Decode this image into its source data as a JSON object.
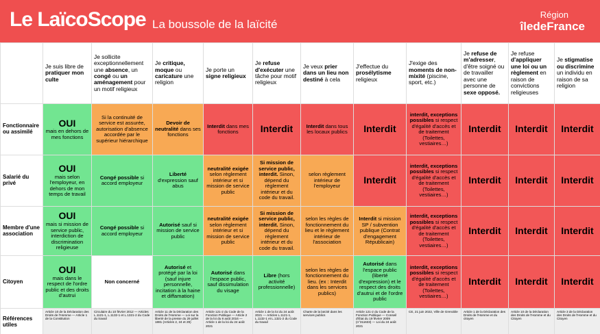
{
  "header": {
    "title": "Le LaïcoScope",
    "subtitle": "La boussole de la laïcité",
    "brand_top": "Région",
    "brand": "îledeFrance"
  },
  "table": {
    "columns": [
      [
        {
          "t": "Je suis libre de "
        },
        {
          "strong": "pratiquer mon culte"
        }
      ],
      [
        {
          "t": "Je sollicite exceptionnellement une "
        },
        {
          "strong": "absence"
        },
        {
          "t": ", un "
        },
        {
          "strong": "congé"
        },
        {
          "t": " ou "
        },
        {
          "strong": "un aménagement"
        },
        {
          "t": " pour un motif religieux"
        }
      ],
      [
        {
          "t": "Je "
        },
        {
          "strong": "critique, moque"
        },
        {
          "t": " ou "
        },
        {
          "strong": "caricature"
        },
        {
          "t": " une religion"
        }
      ],
      [
        {
          "t": "Je porte un "
        },
        {
          "strong": "signe religieux"
        }
      ],
      [
        {
          "t": "Je "
        },
        {
          "strong": "refuse d'exécuter"
        },
        {
          "t": " une tâche pour motif religieux"
        }
      ],
      [
        {
          "t": "Je veux "
        },
        {
          "strong": "prier dans un lieu non destiné"
        },
        {
          "t": " à cela"
        }
      ],
      [
        {
          "t": "J'effectue du "
        },
        {
          "strong": "prosélytisme"
        },
        {
          "t": " religieux"
        }
      ],
      [
        {
          "t": "J'exige des "
        },
        {
          "strong": "moments de non-mixité"
        },
        {
          "t": " (piscine, sport, etc.)"
        }
      ],
      [
        {
          "t": "Je "
        },
        {
          "strong": "refuse de m'adresser"
        },
        {
          "t": ", d'être soigné ou de travailler avec une personne de "
        },
        {
          "strong": "sexe opposé."
        }
      ],
      [
        {
          "t": "Je refuse "
        },
        {
          "strong": "d'appliquer une loi ou un règlement"
        },
        {
          "t": " en raison de convictions religieuses"
        }
      ],
      [
        {
          "t": "Je "
        },
        {
          "strong": "stigmatise ou discrimine"
        },
        {
          "t": " un individu en raison de sa religion"
        }
      ]
    ],
    "rows": [
      {
        "label": "Fonctionnaire ou assimilé",
        "cells": [
          {
            "color": "#72e591",
            "text": [
              {
                "big": "OUI"
              },
              {
                "t": "mais en dehors de mes fonctions"
              }
            ]
          },
          {
            "color": "#f8a954",
            "text": [
              {
                "t": "Si la continuité de service est assurée, autorisation d'absence accordée par le supérieur hiérarchique"
              }
            ]
          },
          {
            "color": "#f8a954",
            "text": [
              {
                "strong": "Devoir de neutralité"
              },
              {
                "t": " dans ses fonctions"
              }
            ]
          },
          {
            "color": "#f25757",
            "text": [
              {
                "strong": "Interdit"
              },
              {
                "t": " dans mes fonctions"
              }
            ]
          },
          {
            "color": "#f25757",
            "text": [
              {
                "big": "Interdit"
              }
            ]
          },
          {
            "color": "#f25757",
            "text": [
              {
                "strong": "Interdit"
              },
              {
                "t": " dans tous les locaux publics"
              }
            ]
          },
          {
            "color": "#f25757",
            "text": [
              {
                "big": "Interdit"
              }
            ]
          },
          {
            "color": "#f25757",
            "text": [
              {
                "strong": "interdit, exceptions possibles"
              },
              {
                "t": " si respect d'égalité d'accès et de traitement (Toilettes, vestiaires…)"
              }
            ]
          },
          {
            "color": "#f25757",
            "text": [
              {
                "big": "Interdit"
              }
            ]
          },
          {
            "color": "#f25757",
            "text": [
              {
                "big": "Interdit"
              }
            ]
          },
          {
            "color": "#f25757",
            "text": [
              {
                "big": "Interdit"
              }
            ]
          }
        ]
      },
      {
        "label": "Salarié du privé",
        "cells": [
          {
            "color": "#72e591",
            "text": [
              {
                "big": "OUI"
              },
              {
                "t": "mais selon l'employeur, en dehors de mon temps de travail"
              }
            ]
          },
          {
            "color": "#72e591",
            "text": [
              {
                "strong": "Congé possible"
              },
              {
                "t": " si accord employeur"
              }
            ]
          },
          {
            "color": "#72e591",
            "text": [
              {
                "strong": "Liberté"
              },
              {
                "t": " d'expression sauf abus"
              }
            ]
          },
          {
            "color": "#f8a954",
            "text": [
              {
                "strong": "neutralité exigée"
              },
              {
                "t": " selon règlement intérieur et si mission de service public"
              }
            ]
          },
          {
            "color": "#f8a954",
            "text": [
              {
                "strong": "Si mission de service public, interdit."
              },
              {
                "t": " Sinon, dépend du règlement intérieur et du code du travail."
              }
            ]
          },
          {
            "color": "#f8a954",
            "text": [
              {
                "t": "selon règlement intérieur de l'employeur"
              }
            ]
          },
          {
            "color": "#f25757",
            "text": [
              {
                "big": "Interdit"
              }
            ]
          },
          {
            "color": "#f25757",
            "text": [
              {
                "strong": "interdit, exceptions possibles"
              },
              {
                "t": " si respect d'égalité d'accès et de traitement (Toilettes, vestiaires…)"
              }
            ]
          },
          {
            "color": "#f25757",
            "text": [
              {
                "big": "Interdit"
              }
            ]
          },
          {
            "color": "#f25757",
            "text": [
              {
                "big": "Interdit"
              }
            ]
          },
          {
            "color": "#f25757",
            "text": [
              {
                "big": "Interdit"
              }
            ]
          }
        ]
      },
      {
        "label": "Membre d'une association",
        "cells": [
          {
            "color": "#72e591",
            "text": [
              {
                "big": "OUI"
              },
              {
                "t": "mais si mission de service public, interdiction de discrimination religieuse"
              }
            ]
          },
          {
            "color": "#72e591",
            "text": [
              {
                "strong": "Congé possible"
              },
              {
                "t": " si accord employeur"
              }
            ]
          },
          {
            "color": "#72e591",
            "text": [
              {
                "strong": "Autorisé"
              },
              {
                "t": " sauf si mission de service public"
              }
            ]
          },
          {
            "color": "#f8a954",
            "text": [
              {
                "strong": "neutralité exigée"
              },
              {
                "t": " selon règlement intérieur et si mission de service public"
              }
            ]
          },
          {
            "color": "#f8a954",
            "text": [
              {
                "strong": "Si mission de service public, interdit."
              },
              {
                "t": " Sinon, dépend du règlement intérieur et du code du travail."
              }
            ]
          },
          {
            "color": "#f8a954",
            "text": [
              {
                "t": "selon les règles de fonctionnement du lieu et le règlement intérieur de l'association"
              }
            ]
          },
          {
            "color": "#f8a954",
            "text": [
              {
                "strong": "Interdit"
              },
              {
                "t": " si mission SP / subvention publique (Contrat d'engagement Républicain)"
              }
            ]
          },
          {
            "color": "#f25757",
            "text": [
              {
                "strong": "interdit, exceptions possibles"
              },
              {
                "t": " si respect d'égalité d'accès et de traitement (Toilettes, vestiaires…)"
              }
            ]
          },
          {
            "color": "#f25757",
            "text": [
              {
                "big": "Interdit"
              }
            ]
          },
          {
            "color": "#f25757",
            "text": [
              {
                "big": "Interdit"
              }
            ]
          },
          {
            "color": "#f25757",
            "text": [
              {
                "big": "Interdit"
              }
            ]
          }
        ]
      },
      {
        "label": "Citoyen",
        "cells": [
          {
            "color": "#72e591",
            "text": [
              {
                "big": "OUI"
              },
              {
                "t": "mais dans le respect de l'ordre public et des droits d'autrui"
              }
            ]
          },
          {
            "color": "#ffffff",
            "text": [
              {
                "strong": "Non concerné"
              }
            ]
          },
          {
            "color": "#72e591",
            "text": [
              {
                "strong": "Autorisé"
              },
              {
                "t": " et protégé par la loi (sauf injure personnelle, incitation à la haine et diffamation)"
              }
            ]
          },
          {
            "color": "#72e591",
            "text": [
              {
                "strong": "Autorisé"
              },
              {
                "t": " dans l'espace public, sauf dissimulation du visage"
              }
            ]
          },
          {
            "color": "#72e591",
            "text": [
              {
                "strong": "Libre"
              },
              {
                "t": " (hors activité professionnelle)"
              }
            ]
          },
          {
            "color": "#f8a954",
            "text": [
              {
                "t": "selon les règles de fonctionnement du lieu. (ex : Interdit dans les services publics)"
              }
            ]
          },
          {
            "color": "#72e591",
            "text": [
              {
                "strong": "Autorisé"
              },
              {
                "t": " dans l'espace public (liberté d'expression) et le respect des droits d'autrui et de l'ordre public"
              }
            ]
          },
          {
            "color": "#f25757",
            "text": [
              {
                "strong": "interdit, exceptions possibles"
              },
              {
                "t": " si respect d'égalité d'accès et de traitement (Toilettes, vestiaires…)"
              }
            ]
          },
          {
            "color": "#f25757",
            "text": [
              {
                "big": "Interdit"
              }
            ]
          },
          {
            "color": "#f25757",
            "text": [
              {
                "big": "Interdit"
              }
            ]
          },
          {
            "color": "#f25757",
            "text": [
              {
                "big": "Interdit"
              }
            ]
          }
        ]
      }
    ],
    "references": {
      "label": "Références utiles",
      "cells": [
        "Article 10 de la Déclaration des Droits de l'Homme — Article 1 de la Constitution",
        "Circulaire du 10 février 2012 — Articles L.1121-1, L.1132-1 et L.1321-2 du Code du travail",
        "Article 11 de la Déclaration des Droits de l'Homme — Loi sur la liberté de la presse du 29 juillet 1881 (Articles 2, 24 et 29)",
        "Article 121-2 du Code de la Fonction Publique — Article 2 de la loi du 8 août 2016 — Article 1 de la loi du 24 août 2021",
        "Article 1 de la loi du 24 août 2021 — Articles L.1121-1, L.1132-1 et L.1321-2 du Code du travail",
        "Charte de la laïcité dans les services publics",
        "Article 121-2 du Code de la Fonction Publique — Conseil d'État du 19 février 2009 (n°311633) — Loi du 24 août 2021",
        "CE, 21 juin 2022, Ville de Grenoble",
        "Article 1 de la Déclaration des Droits de l'Homme et du citoyen",
        "Article 10 de la Déclaration des Droits de l'Homme et du Citoyen",
        "Article 3 de la Déclaration des Droits de l'Homme et du Citoyen"
      ]
    }
  }
}
